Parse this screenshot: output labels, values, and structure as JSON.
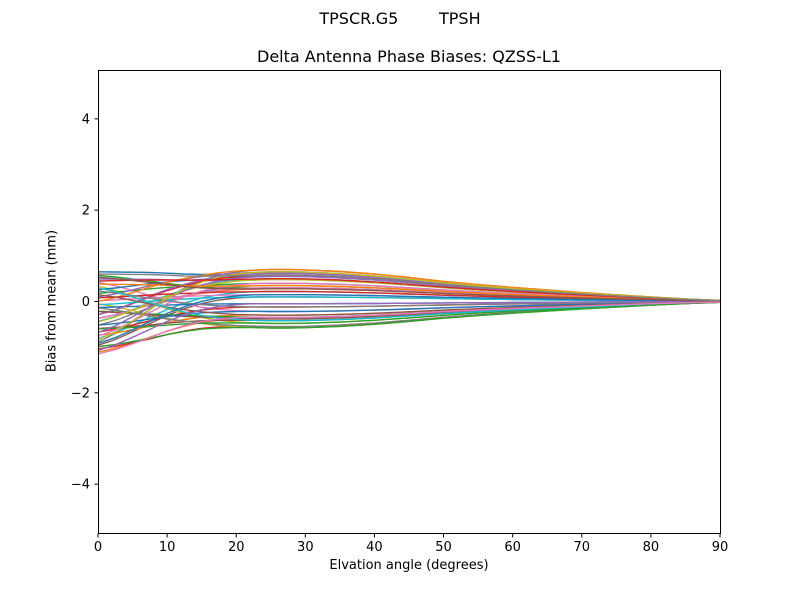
{
  "figure": {
    "suptitle": "TPSCR.G5        TPSH",
    "background_color": "#ffffff",
    "spine_color": "#000000"
  },
  "chart_data": {
    "type": "line",
    "title": "Delta Antenna Phase Biases: QZSS-L1",
    "xlabel": "Elvation angle (degrees)",
    "ylabel": "Bias from mean (mm)",
    "xlim": [
      0,
      90
    ],
    "ylim": [
      -5.07,
      5.07
    ],
    "xticks": [
      0,
      10,
      20,
      30,
      40,
      50,
      60,
      70,
      80,
      90
    ],
    "yticks": [
      -4,
      -2,
      0,
      2,
      4
    ],
    "grid": false,
    "legend": null,
    "line_width": 1.4,
    "x": [
      0,
      2.5,
      5,
      7.5,
      10,
      12.5,
      15,
      17.5,
      20,
      22.5,
      25,
      27.5,
      30,
      35,
      40,
      45,
      50,
      55,
      60,
      65,
      70,
      75,
      80,
      85,
      90
    ],
    "basis": {
      "model": "y[k] = start*h[k] + peak*g[k]  (start = bias at 0 deg, peak = bias at ~27 deg, all curves -> 0 mm at 90 deg)",
      "h": [
        1,
        0.88,
        0.72,
        0.55,
        0.38,
        0.24,
        0.13,
        0.06,
        0.02,
        0,
        0,
        0,
        0,
        0,
        0,
        0,
        0,
        0,
        0,
        0,
        0,
        0,
        0,
        0,
        0
      ],
      "g": [
        0,
        0.12,
        0.28,
        0.45,
        0.6,
        0.72,
        0.82,
        0.9,
        0.95,
        0.98,
        1.0,
        1.0,
        0.99,
        0.94,
        0.86,
        0.75,
        0.63,
        0.53,
        0.44,
        0.36,
        0.28,
        0.21,
        0.14,
        0.08,
        0.03
      ]
    },
    "series": [
      {
        "color": "#1f77b4",
        "start": 0.65,
        "peak": 0.62
      },
      {
        "color": "#ff7f0e",
        "start": -1.11,
        "peak": -0.38
      },
      {
        "color": "#2ca02c",
        "start": 0.57,
        "peak": 0.3
      },
      {
        "color": "#d62728",
        "start": -1.04,
        "peak": -0.55
      },
      {
        "color": "#9467bd",
        "start": 0.49,
        "peak": 0.48
      },
      {
        "color": "#8c564b",
        "start": -0.96,
        "peak": 0.1
      },
      {
        "color": "#e377c2",
        "start": 0.42,
        "peak": -0.22
      },
      {
        "color": "#7f7f7f",
        "start": -0.89,
        "peak": 0.7
      },
      {
        "color": "#bcbd22",
        "start": 0.34,
        "peak": -0.48
      },
      {
        "color": "#17becf",
        "start": -0.81,
        "peak": 0.22
      },
      {
        "color": "#1f77b4",
        "start": 0.26,
        "peak": 0.55
      },
      {
        "color": "#ff7f0e",
        "start": -0.74,
        "peak": -0.3
      },
      {
        "color": "#2ca02c",
        "start": 0.18,
        "peak": 0.4
      },
      {
        "color": "#d62728",
        "start": -0.67,
        "peak": -0.12
      },
      {
        "color": "#9467bd",
        "start": 0.1,
        "peak": 0.65
      },
      {
        "color": "#8c564b",
        "start": -0.59,
        "peak": -0.42
      },
      {
        "color": "#e377c2",
        "start": 0.02,
        "peak": 0.15
      },
      {
        "color": "#7f7f7f",
        "start": -0.52,
        "peak": 0.35
      },
      {
        "color": "#bcbd22",
        "start": -0.05,
        "peak": -0.58
      },
      {
        "color": "#17becf",
        "start": -0.44,
        "peak": 0.5
      },
      {
        "color": "#1f77b4",
        "start": -0.13,
        "peak": -0.05
      },
      {
        "color": "#ff7f0e",
        "start": -0.37,
        "peak": 0.28
      },
      {
        "color": "#2ca02c",
        "start": -0.21,
        "peak": -0.35
      },
      {
        "color": "#d62728",
        "start": -0.29,
        "peak": 0.58
      },
      {
        "color": "#9467bd",
        "start": -0.29,
        "peak": 0.62
      },
      {
        "color": "#8c564b",
        "start": -0.22,
        "peak": -0.38
      },
      {
        "color": "#e377c2",
        "start": -0.37,
        "peak": 0.3
      },
      {
        "color": "#7f7f7f",
        "start": -0.14,
        "peak": -0.55
      },
      {
        "color": "#bcbd22",
        "start": -0.45,
        "peak": 0.48
      },
      {
        "color": "#17becf",
        "start": -0.07,
        "peak": 0.1
      },
      {
        "color": "#1f77b4",
        "start": -0.52,
        "peak": -0.22
      },
      {
        "color": "#ff7f0e",
        "start": 0.0,
        "peak": 0.7
      },
      {
        "color": "#2ca02c",
        "start": -0.6,
        "peak": -0.48
      },
      {
        "color": "#d62728",
        "start": 0.08,
        "peak": 0.22
      },
      {
        "color": "#9467bd",
        "start": -0.68,
        "peak": 0.55
      },
      {
        "color": "#8c564b",
        "start": 0.15,
        "peak": -0.3
      },
      {
        "color": "#e377c2",
        "start": -0.76,
        "peak": 0.4
      },
      {
        "color": "#7f7f7f",
        "start": 0.23,
        "peak": -0.12
      },
      {
        "color": "#bcbd22",
        "start": -0.84,
        "peak": 0.65
      },
      {
        "color": "#17becf",
        "start": 0.3,
        "peak": -0.42
      },
      {
        "color": "#1f77b4",
        "start": -0.92,
        "peak": 0.15
      },
      {
        "color": "#ff7f0e",
        "start": 0.38,
        "peak": 0.35
      },
      {
        "color": "#2ca02c",
        "start": -0.99,
        "peak": -0.58
      },
      {
        "color": "#d62728",
        "start": 0.45,
        "peak": 0.5
      },
      {
        "color": "#9467bd",
        "start": -1.07,
        "peak": -0.05
      },
      {
        "color": "#8c564b",
        "start": 0.53,
        "peak": 0.28
      },
      {
        "color": "#e377c2",
        "start": -1.15,
        "peak": -0.35
      },
      {
        "color": "#7f7f7f",
        "start": 0.6,
        "peak": 0.58
      }
    ]
  }
}
